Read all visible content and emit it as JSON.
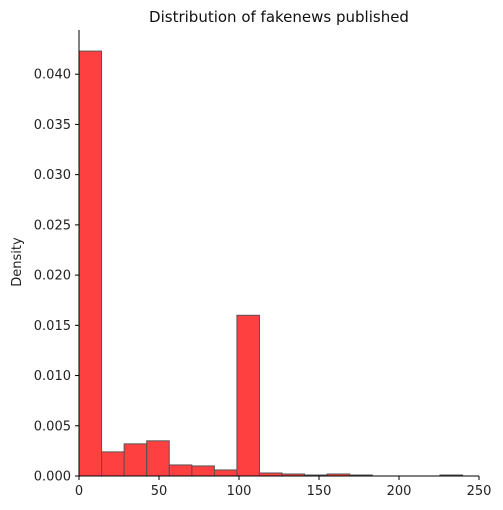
{
  "chart_data": {
    "type": "bar",
    "title": "Distribution of fakenews published",
    "xlabel": "",
    "ylabel": "Density",
    "xlim": [
      0,
      250
    ],
    "ylim": [
      0,
      0.0444
    ],
    "bin_width": 14.1,
    "bin_edges": [
      0,
      14.1,
      28.2,
      42.3,
      56.4,
      70.5,
      84.6,
      98.7,
      112.8,
      126.9,
      141.0,
      155.1,
      169.2,
      183.3,
      197.4,
      211.5,
      225.6,
      239.7
    ],
    "values": [
      0.0423,
      0.0024,
      0.0032,
      0.0035,
      0.0011,
      0.001,
      0.0006,
      0.016,
      0.0003,
      0.0002,
      0.0001,
      0.0002,
      0.0001,
      0.0,
      0.0,
      0.0,
      0.0001
    ],
    "xticks": [
      0,
      50,
      100,
      150,
      200,
      250
    ],
    "yticks": [
      0.0,
      0.005,
      0.01,
      0.015,
      0.02,
      0.025,
      0.03,
      0.035,
      0.04
    ],
    "xtick_labels": [
      "0",
      "50",
      "100",
      "150",
      "200",
      "250"
    ],
    "ytick_labels": [
      "0.000",
      "0.005",
      "0.010",
      "0.015",
      "0.020",
      "0.025",
      "0.030",
      "0.035",
      "0.040"
    ],
    "grid": false,
    "legend": "none",
    "bar_color": "#ff0000",
    "bar_alpha": 0.75,
    "edge_color": "#555555"
  }
}
